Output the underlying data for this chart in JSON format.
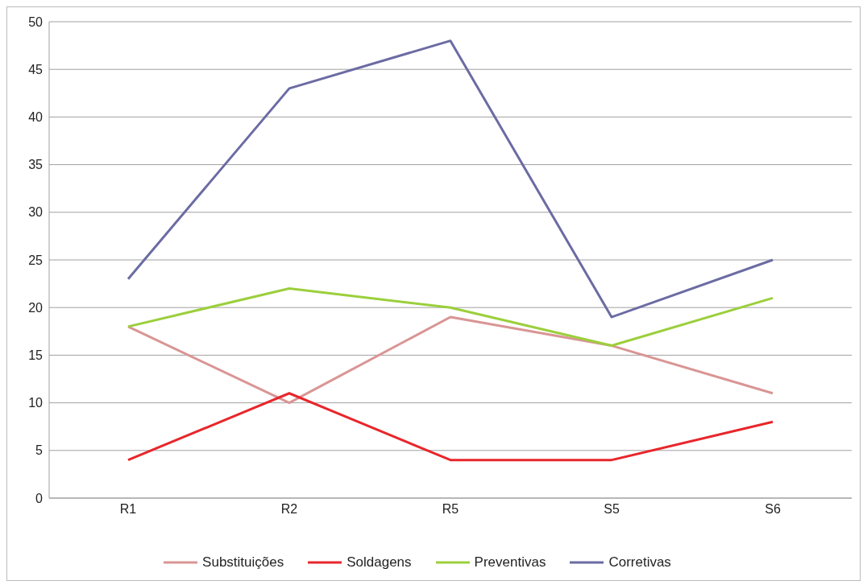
{
  "chart_data": {
    "type": "line",
    "categories": [
      "R1",
      "R2",
      "R5",
      "S5",
      "S6"
    ],
    "series": [
      {
        "name": "Substituições",
        "color": "#d99594",
        "values": [
          18,
          10,
          19,
          16,
          11
        ]
      },
      {
        "name": "Soldagens",
        "color": "#e8262b",
        "values": [
          4,
          11,
          4,
          4,
          8
        ]
      },
      {
        "name": "Preventivas",
        "color": "#9bcf3c",
        "values": [
          18,
          22,
          20,
          16,
          21
        ]
      },
      {
        "name": "Corretivas",
        "color": "#6b6ba3",
        "values": [
          23,
          43,
          48,
          19,
          25
        ]
      }
    ],
    "ylim": [
      0,
      50
    ],
    "yticks": [
      0,
      5,
      10,
      15,
      20,
      25,
      30,
      35,
      40,
      45,
      50
    ],
    "grid": "y",
    "legend": "bottom",
    "marker": "none",
    "line_style": "solid"
  }
}
